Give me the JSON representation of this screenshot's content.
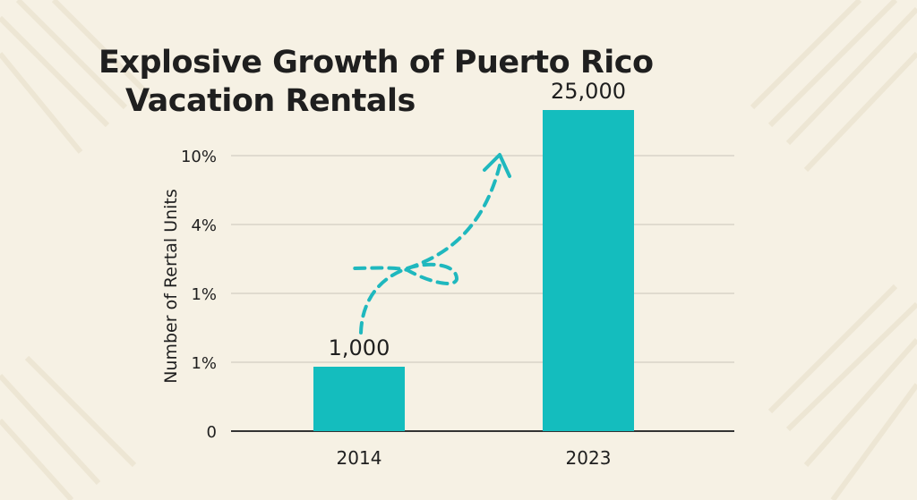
{
  "chart_data": {
    "type": "bar",
    "title_lines": [
      "Explosive Growth of Puerto Rico",
      "Vacation Rentals"
    ],
    "ylabel": "Number of Rertal Units",
    "xlabel": "",
    "categories": [
      "2014",
      "2023"
    ],
    "values": [
      1000,
      25000
    ],
    "value_labels": [
      "1,000",
      "25,000"
    ],
    "y_tick_labels": [
      "0",
      "1%",
      "1%",
      "4%",
      "10%"
    ],
    "grid": true,
    "annotation": "dashed upward arrow from 2014 bar toward 2023 bar"
  },
  "colors": {
    "bar": "#14bdbe",
    "background": "#f6f1e4",
    "text": "#1f1f1f",
    "grid": "#d9d4c8",
    "arrow": "#1fb8be"
  }
}
